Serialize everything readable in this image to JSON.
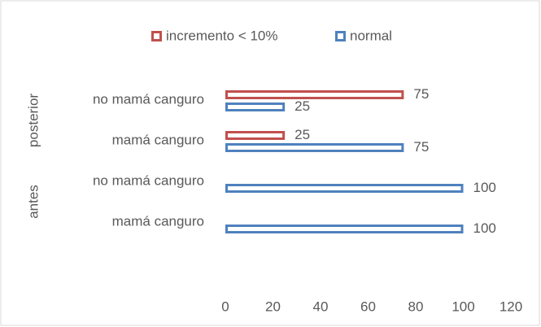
{
  "chart_data": {
    "type": "bar",
    "orientation": "horizontal",
    "category_groups": [
      "antes",
      "antes",
      "posterior",
      "posterior"
    ],
    "categories": [
      "mamá canguro",
      "no mamá canguro",
      "mamá canguro",
      "no mamá canguro"
    ],
    "series": [
      {
        "name": "incremento < 10%",
        "color": "#c0504d",
        "values": [
          null,
          null,
          25,
          75
        ]
      },
      {
        "name": "normal",
        "color": "#4f81bd",
        "values": [
          100,
          100,
          75,
          25
        ]
      }
    ],
    "xlim": [
      0,
      120
    ],
    "xticks": [
      0,
      20,
      40,
      60,
      80,
      100,
      120
    ],
    "legend": "top",
    "grid": false
  }
}
